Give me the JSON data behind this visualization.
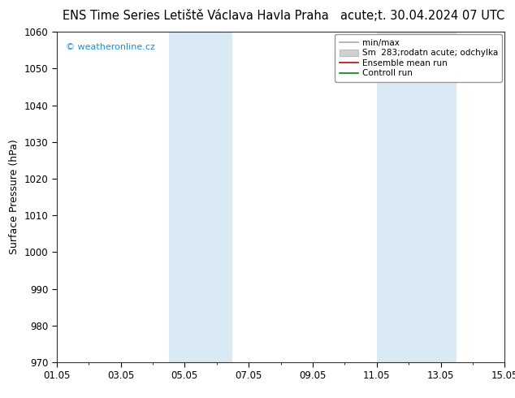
{
  "title_left": "ENS Time Series Letiště Václava Havla Praha",
  "title_right": "acute;t. 30.04.2024 07 UTC",
  "ylabel": "Surface Pressure (hPa)",
  "ylim": [
    970,
    1060
  ],
  "yticks": [
    970,
    980,
    990,
    1000,
    1010,
    1020,
    1030,
    1040,
    1050,
    1060
  ],
  "xlim": [
    0,
    14
  ],
  "xtick_labels": [
    "01.05",
    "03.05",
    "05.05",
    "07.05",
    "09.05",
    "11.05",
    "13.05",
    "15.05"
  ],
  "xtick_positions": [
    0,
    2,
    4,
    6,
    8,
    10,
    12,
    14
  ],
  "shaded_bands": [
    {
      "x_start": 3.5,
      "x_end": 5.5,
      "color": "#daeaf5"
    },
    {
      "x_start": 10.0,
      "x_end": 12.5,
      "color": "#daeaf5"
    }
  ],
  "watermark": "© weatheronline.cz",
  "watermark_color": "#1a90c8",
  "bg_color": "#ffffff",
  "plot_bg_color": "#ffffff",
  "title_fontsize": 10.5,
  "tick_fontsize": 8.5,
  "ylabel_fontsize": 9,
  "legend_fontsize": 7.5
}
